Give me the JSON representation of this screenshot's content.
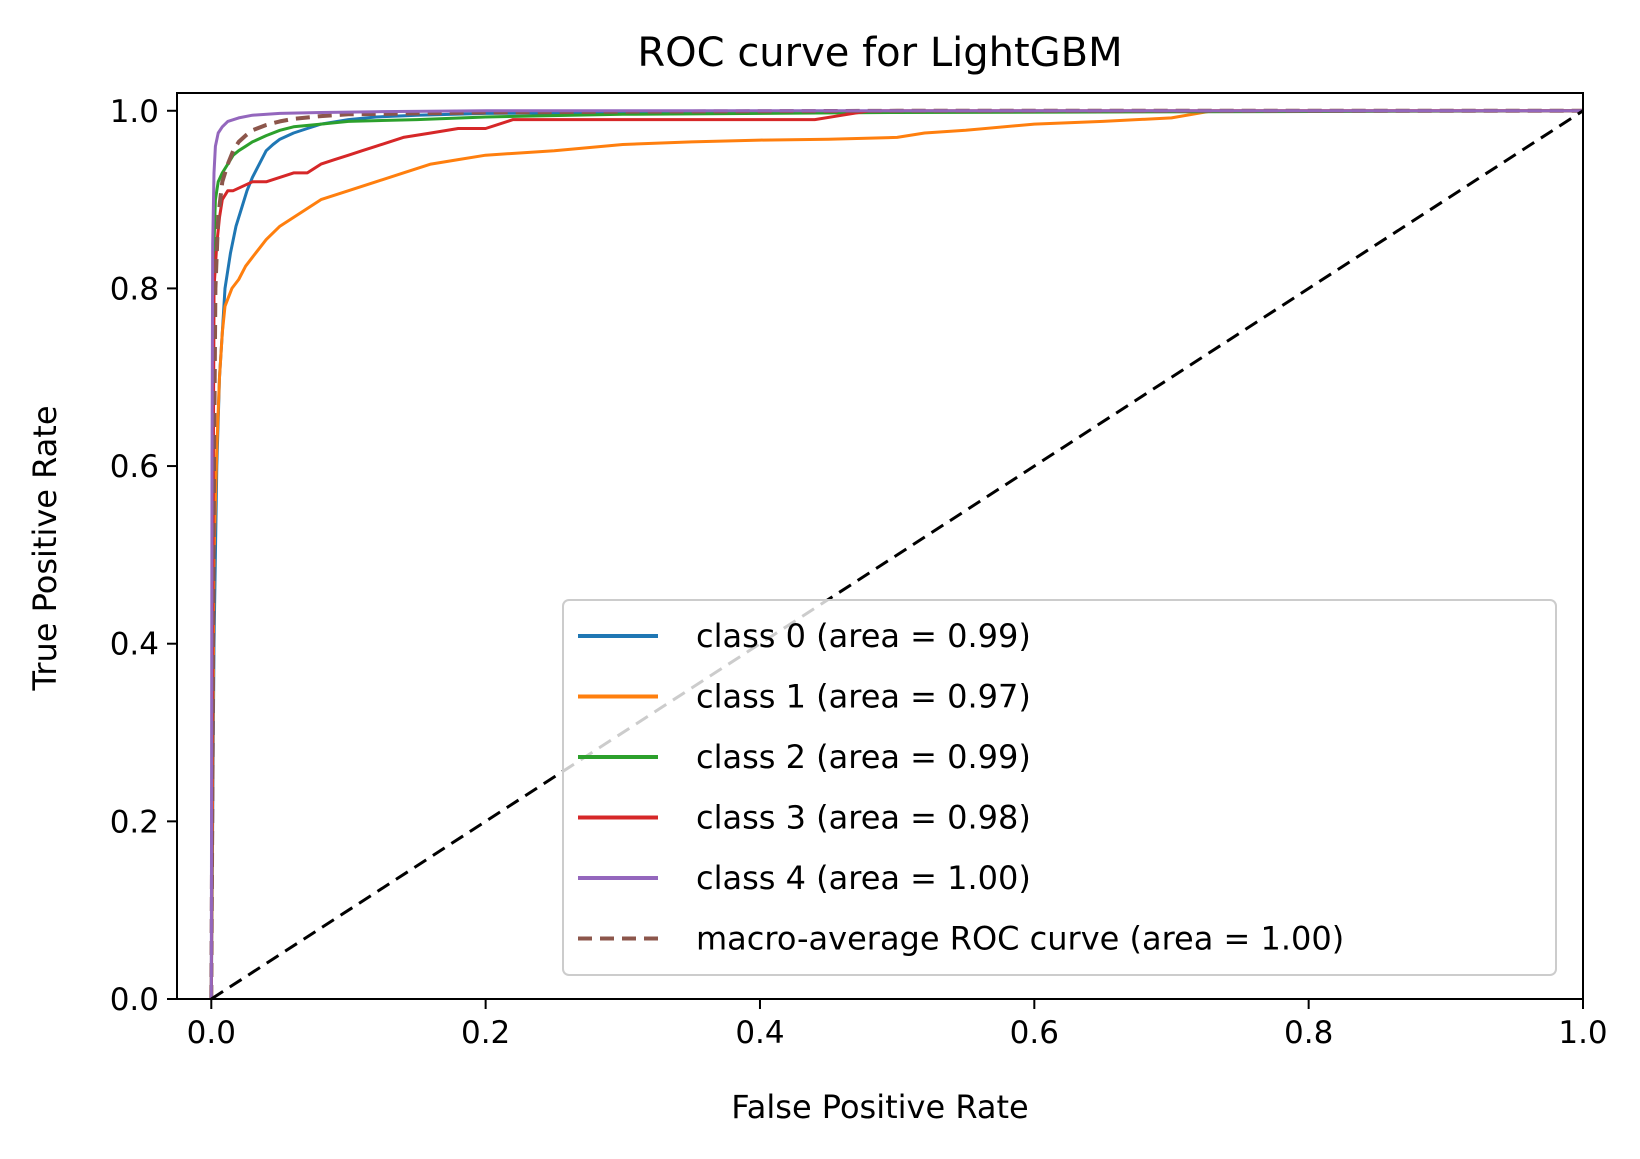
{
  "chart_data": {
    "type": "line",
    "title": "ROC curve for LightGBM",
    "xlabel": "False Positive Rate",
    "ylabel": "True Positive Rate",
    "xlim": [
      -0.025,
      1.0
    ],
    "ylim": [
      0.0,
      1.02
    ],
    "xticks": [
      0.0,
      0.2,
      0.4,
      0.6,
      0.8,
      1.0
    ],
    "yticks": [
      0.0,
      0.2,
      0.4,
      0.6,
      0.8,
      1.0
    ],
    "xtick_labels": [
      "0.0",
      "0.2",
      "0.4",
      "0.6",
      "0.8",
      "1.0"
    ],
    "ytick_labels": [
      "0.0",
      "0.2",
      "0.4",
      "0.6",
      "0.8",
      "1.0"
    ],
    "grid": false,
    "legend_position": "lower-right",
    "series": [
      {
        "name": "class 0 (area = 0.99)",
        "color": "#1f77b4",
        "style": "solid",
        "x": [
          0.0,
          0.002,
          0.004,
          0.006,
          0.008,
          0.01,
          0.014,
          0.018,
          0.022,
          0.026,
          0.03,
          0.035,
          0.04,
          0.045,
          0.05,
          0.06,
          0.07,
          0.08,
          0.1,
          0.12,
          0.15,
          0.2,
          0.3,
          0.5,
          1.0
        ],
        "y": [
          0.0,
          0.4,
          0.6,
          0.7,
          0.75,
          0.8,
          0.84,
          0.87,
          0.89,
          0.91,
          0.925,
          0.94,
          0.955,
          0.962,
          0.968,
          0.975,
          0.98,
          0.985,
          0.99,
          0.993,
          0.995,
          0.997,
          0.998,
          0.999,
          1.0
        ]
      },
      {
        "name": "class 1 (area = 0.97)",
        "color": "#ff7f0e",
        "style": "solid",
        "x": [
          0.0,
          0.002,
          0.004,
          0.006,
          0.008,
          0.01,
          0.015,
          0.02,
          0.025,
          0.03,
          0.035,
          0.04,
          0.05,
          0.06,
          0.07,
          0.08,
          0.1,
          0.12,
          0.14,
          0.16,
          0.18,
          0.2,
          0.25,
          0.3,
          0.35,
          0.4,
          0.45,
          0.5,
          0.52,
          0.55,
          0.6,
          0.65,
          0.7,
          0.73,
          0.8,
          1.0
        ],
        "y": [
          0.0,
          0.5,
          0.62,
          0.7,
          0.75,
          0.78,
          0.8,
          0.81,
          0.825,
          0.835,
          0.845,
          0.855,
          0.87,
          0.88,
          0.89,
          0.9,
          0.91,
          0.92,
          0.93,
          0.94,
          0.945,
          0.95,
          0.955,
          0.962,
          0.965,
          0.967,
          0.968,
          0.97,
          0.975,
          0.978,
          0.985,
          0.988,
          0.992,
          1.0,
          1.0,
          1.0
        ]
      },
      {
        "name": "class 2 (area = 0.99)",
        "color": "#2ca02c",
        "style": "solid",
        "x": [
          0.0,
          0.002,
          0.003,
          0.005,
          0.008,
          0.012,
          0.016,
          0.02,
          0.025,
          0.03,
          0.04,
          0.05,
          0.06,
          0.08,
          0.1,
          0.15,
          0.2,
          0.3,
          0.5,
          1.0
        ],
        "y": [
          0.0,
          0.85,
          0.9,
          0.92,
          0.93,
          0.94,
          0.95,
          0.955,
          0.96,
          0.965,
          0.972,
          0.978,
          0.982,
          0.985,
          0.988,
          0.99,
          0.993,
          0.996,
          0.998,
          1.0
        ]
      },
      {
        "name": "class 3 (area = 0.98)",
        "color": "#d62728",
        "style": "solid",
        "x": [
          0.0,
          0.002,
          0.004,
          0.006,
          0.008,
          0.012,
          0.016,
          0.03,
          0.04,
          0.06,
          0.07,
          0.08,
          0.09,
          0.1,
          0.11,
          0.12,
          0.14,
          0.16,
          0.18,
          0.2,
          0.22,
          0.3,
          0.44,
          0.46,
          0.48,
          1.0
        ],
        "y": [
          0.0,
          0.8,
          0.85,
          0.88,
          0.9,
          0.91,
          0.91,
          0.92,
          0.92,
          0.93,
          0.93,
          0.94,
          0.945,
          0.95,
          0.955,
          0.96,
          0.97,
          0.975,
          0.98,
          0.98,
          0.99,
          0.99,
          0.99,
          0.995,
          1.0,
          1.0
        ]
      },
      {
        "name": "class 4 (area = 1.00)",
        "color": "#9467bd",
        "style": "solid",
        "x": [
          0.0,
          0.0005,
          0.001,
          0.002,
          0.003,
          0.005,
          0.008,
          0.012,
          0.02,
          0.03,
          0.05,
          0.08,
          0.12,
          0.2,
          1.0
        ],
        "y": [
          0.0,
          0.6,
          0.85,
          0.93,
          0.96,
          0.975,
          0.982,
          0.988,
          0.992,
          0.995,
          0.997,
          0.998,
          0.999,
          1.0,
          1.0
        ]
      },
      {
        "name": "macro-average ROC curve (area = 1.00)",
        "color": "#8c564b",
        "style": "dashed",
        "x": [
          0.0,
          0.001,
          0.002,
          0.003,
          0.005,
          0.008,
          0.012,
          0.016,
          0.02,
          0.025,
          0.03,
          0.04,
          0.05,
          0.06,
          0.08,
          0.1,
          0.15,
          0.2,
          0.3,
          0.5,
          1.0
        ],
        "y": [
          0.0,
          0.3,
          0.6,
          0.8,
          0.88,
          0.92,
          0.94,
          0.955,
          0.965,
          0.972,
          0.978,
          0.984,
          0.988,
          0.991,
          0.994,
          0.996,
          0.997,
          0.998,
          0.999,
          1.0,
          1.0
        ]
      },
      {
        "name": "",
        "color": "#000000",
        "style": "dashed",
        "x": [
          0.0,
          1.0
        ],
        "y": [
          0.0,
          1.0
        ]
      }
    ]
  }
}
